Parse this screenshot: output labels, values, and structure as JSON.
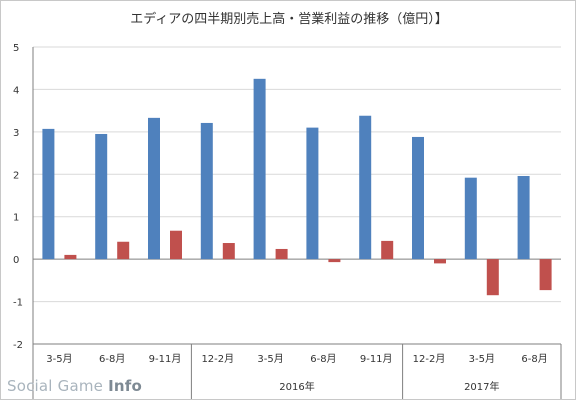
{
  "chart_data": {
    "type": "bar",
    "title": "エディアの四半期別売上高・営業利益の推移（億円）】",
    "categories": [
      "3-5月",
      "6-8月",
      "9-11月",
      "12-2月",
      "3-5月",
      "6-8月",
      "9-11月",
      "12-2月",
      "3-5月",
      "6-8月"
    ],
    "groups": [
      {
        "label": "",
        "count": 3
      },
      {
        "label": "2016年",
        "count": 4
      },
      {
        "label": "2017年",
        "count": 3
      }
    ],
    "series": [
      {
        "values": [
          3.07,
          2.95,
          3.33,
          3.21,
          4.25,
          3.1,
          3.38,
          2.88,
          1.92,
          1.96
        ],
        "color": "#4f81bd"
      },
      {
        "values": [
          0.1,
          0.41,
          0.67,
          0.38,
          0.24,
          -0.07,
          0.43,
          -0.1,
          -0.85,
          -0.73
        ],
        "color": "#c0504d"
      }
    ],
    "y_ticks": [
      5,
      4,
      3,
      2,
      1,
      0,
      -1,
      -2
    ],
    "ylim": [
      -2,
      5
    ],
    "grid": true
  },
  "watermark": {
    "text_light": "Social Game ",
    "text_bold": "Info"
  }
}
